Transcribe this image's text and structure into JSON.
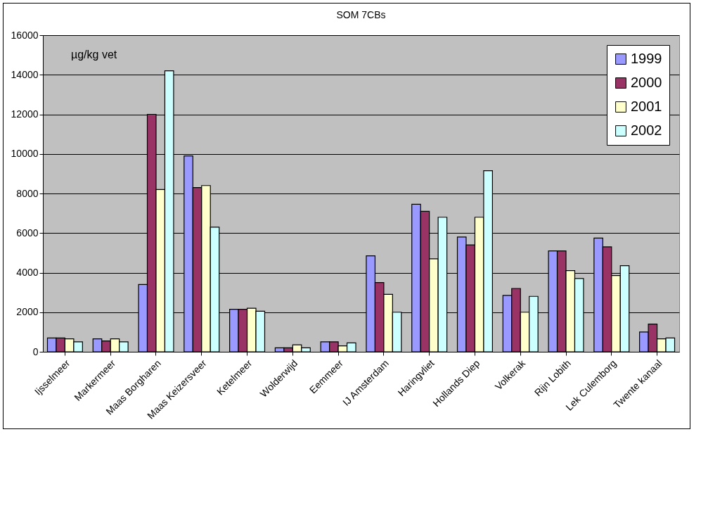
{
  "chart_data": {
    "type": "bar",
    "title": "SOM 7CBs",
    "annotations": [
      "µg/kg vet"
    ],
    "categories": [
      "Ijsselmeer",
      "Markermeer",
      "Maas Borgharen",
      "Maas Keizersveer",
      "Ketelmeer",
      "Wolderwijd",
      "Eemmeer",
      "IJ Amsterdam",
      "Haringvliet",
      "Hollands Diep",
      "Volkerak",
      "Rijn Lobith",
      "Lek Culemborg",
      "Twente kanaal"
    ],
    "series": [
      {
        "name": "1999",
        "color": "#9999ff",
        "values": [
          700,
          650,
          3400,
          9900,
          2150,
          200,
          500,
          4850,
          7450,
          5800,
          2850,
          5100,
          5750,
          1000
        ]
      },
      {
        "name": "2000",
        "color": "#993366",
        "values": [
          700,
          550,
          12000,
          8300,
          2150,
          200,
          500,
          3500,
          7100,
          5400,
          3200,
          5100,
          5300,
          1400
        ]
      },
      {
        "name": "2001",
        "color": "#ffffcc",
        "values": [
          650,
          650,
          8200,
          8400,
          2200,
          350,
          300,
          2900,
          4700,
          6800,
          2000,
          4100,
          3850,
          650
        ]
      },
      {
        "name": "2002",
        "color": "#ccffff",
        "values": [
          500,
          500,
          14200,
          6300,
          2050,
          200,
          450,
          2000,
          6800,
          9150,
          2800,
          3700,
          4350,
          700
        ]
      }
    ],
    "ylim": [
      0,
      16000
    ],
    "yticks": [
      0,
      2000,
      4000,
      6000,
      8000,
      10000,
      12000,
      14000,
      16000
    ],
    "grid": "y",
    "legend": "top right"
  }
}
